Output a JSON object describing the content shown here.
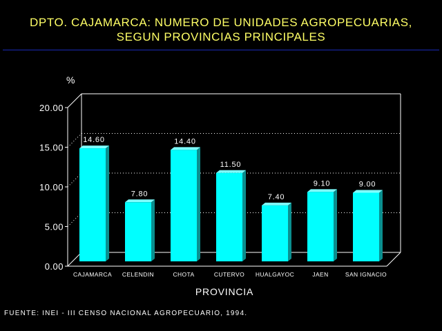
{
  "chart_data": {
    "type": "bar",
    "title_lines": [
      "DPTO. CAJAMARCA: NUMERO DE UNIDADES AGROPECUARIAS,",
      "SEGUN PROVINCIAS PRINCIPALES"
    ],
    "xlabel": "PROVINCIA",
    "ylabel": "%",
    "categories": [
      "CAJAMARCA",
      "CELENDIN",
      "CHOTA",
      "CUTERVO",
      "HUALGAYOC",
      "JAEN",
      "SAN IGNACIO"
    ],
    "values": [
      14.6,
      7.8,
      14.4,
      11.5,
      7.4,
      9.1,
      9.0
    ],
    "value_labels": [
      "14.60",
      "7.80",
      "14.40",
      "11.50",
      "7.40",
      "9.10",
      "9.00"
    ],
    "ylim": [
      0,
      20
    ],
    "yticks": [
      "0.00",
      "5.00",
      "10.00",
      "15.00",
      "20.00"
    ],
    "ytick_values": [
      0,
      5,
      10,
      15,
      20
    ],
    "grid": "dotted-horizontal",
    "bar_color": "#00ffff",
    "bar_shadow_color": "#0a8f8f",
    "axis_color": "#ffffff",
    "grid_color": "#ffffff"
  },
  "source": "FUENTE: INEI - III CENSO NACIONAL AGROPECUARIO, 1994."
}
